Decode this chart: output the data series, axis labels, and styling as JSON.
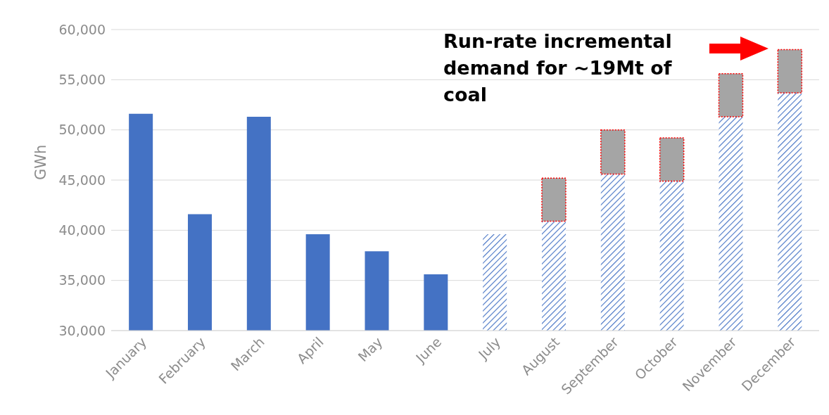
{
  "chart_data": {
    "type": "bar",
    "ylabel": "GWh",
    "categories": [
      "January",
      "February",
      "March",
      "April",
      "May",
      "June",
      "July",
      "August",
      "September",
      "October",
      "November",
      "December"
    ],
    "series": [
      {
        "color": "#4472c4",
        "values": [
          51600,
          41600,
          51300,
          39600,
          37900,
          35600,
          null,
          null,
          null,
          null,
          null,
          null
        ]
      },
      {
        "color": "#4472c4",
        "values": [
          null,
          null,
          null,
          null,
          null,
          null,
          39600,
          40900,
          45600,
          44900,
          51300,
          53700
        ]
      },
      {
        "color": "#a5a5a5",
        "values": [
          null,
          null,
          null,
          null,
          null,
          null,
          null,
          4300,
          4400,
          4300,
          4300,
          4300
        ],
        "base": [
          null,
          null,
          null,
          null,
          null,
          null,
          null,
          40900,
          45600,
          44900,
          51300,
          53700
        ]
      }
    ],
    "ylim": [
      30000,
      60000
    ],
    "yticks": [
      {
        "value": 30000,
        "label": "30,000"
      },
      {
        "value": 35000,
        "label": "35,000"
      },
      {
        "value": 40000,
        "label": "40,000"
      },
      {
        "value": 45000,
        "label": "45,000"
      },
      {
        "value": 50000,
        "label": "50,000"
      },
      {
        "value": 55000,
        "label": "55,000"
      },
      {
        "value": 60000,
        "label": "60,000"
      }
    ],
    "grid": "y",
    "legend": false,
    "annotations": [
      "Run-rate incremental demand for ~19Mt of coal"
    ]
  }
}
